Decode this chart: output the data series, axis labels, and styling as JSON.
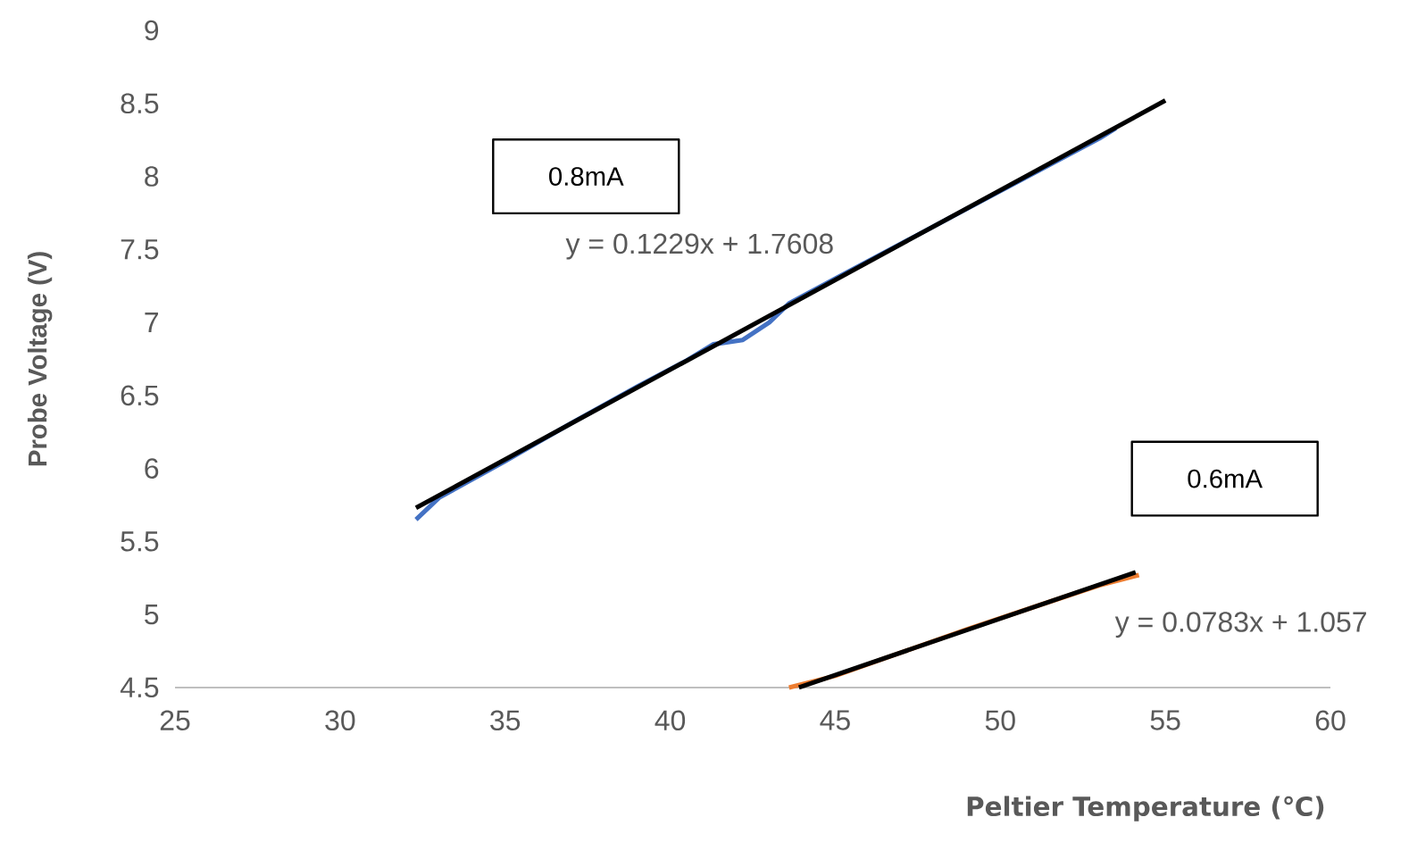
{
  "chart_data": {
    "type": "line",
    "xlabel": "Peltier Temperature (℃)",
    "ylabel": "Probe Voltage (V)",
    "xlim": [
      25,
      60
    ],
    "xticks": [
      25,
      30,
      35,
      40,
      45,
      50,
      55,
      60
    ],
    "ylim": [
      4.5,
      9
    ],
    "yticks": [
      4.5,
      5,
      5.5,
      6,
      6.5,
      7,
      7.5,
      8,
      8.5,
      9
    ],
    "grid": false,
    "series": [
      {
        "color": "#4472c4",
        "x": [
          32.3,
          33,
          35,
          37,
          39,
          40.5,
          41.3,
          42.2,
          43,
          43.6,
          45,
          47,
          49,
          51,
          53,
          53.5
        ],
        "values": [
          5.65,
          5.8,
          6.05,
          6.31,
          6.56,
          6.74,
          6.85,
          6.88,
          7.0,
          7.13,
          7.3,
          7.54,
          7.78,
          8.02,
          8.26,
          8.33
        ]
      },
      {
        "color": "#000000",
        "x": [
          32.3,
          55.0
        ],
        "values": [
          5.73,
          8.52
        ]
      },
      {
        "color": "#ed7d31",
        "x": [
          43.6,
          45,
          47,
          49,
          51,
          53,
          54.2
        ],
        "values": [
          4.5,
          4.58,
          4.74,
          4.9,
          5.05,
          5.2,
          5.27
        ]
      },
      {
        "color": "#000000",
        "x": [
          43.9,
          54.1
        ],
        "values": [
          4.5,
          5.29
        ]
      }
    ],
    "annotations": [
      "0.8mA",
      "y = 0.1229x + 1.7608",
      "0.6mA",
      "y = 0.0783x + 1.057"
    ]
  }
}
